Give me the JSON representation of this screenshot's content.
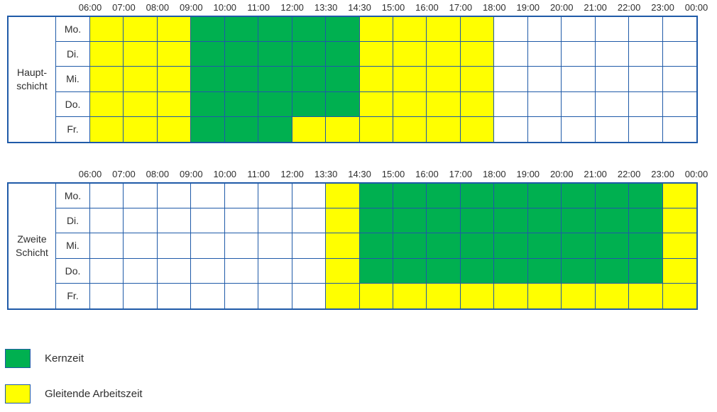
{
  "colors": {
    "core": "#00B050",
    "flex": "#FFFF00",
    "empty": "#FFFFFF",
    "grid": "#1F5AA8",
    "text": "#2e2e2e"
  },
  "time_labels": [
    "06:00",
    "07:00",
    "08:00",
    "09:00",
    "10:00",
    "11:00",
    "12:00",
    "13:30",
    "14:30",
    "15:00",
    "16:00",
    "17:00",
    "18:00",
    "19:00",
    "20:00",
    "21:00",
    "22:00",
    "23:00",
    "00:00"
  ],
  "tables": [
    {
      "id": "hauptschicht",
      "shift_label_lines": [
        "Haupt-",
        "schicht"
      ],
      "rows": [
        {
          "day": "Mo.",
          "cells": [
            "flex",
            "flex",
            "flex",
            "core",
            "core",
            "core",
            "core",
            "core",
            "flex",
            "flex",
            "flex",
            "flex",
            "empty",
            "empty",
            "empty",
            "empty",
            "empty",
            "empty"
          ]
        },
        {
          "day": "Di.",
          "cells": [
            "flex",
            "flex",
            "flex",
            "core",
            "core",
            "core",
            "core",
            "core",
            "flex",
            "flex",
            "flex",
            "flex",
            "empty",
            "empty",
            "empty",
            "empty",
            "empty",
            "empty"
          ]
        },
        {
          "day": "Mi.",
          "cells": [
            "flex",
            "flex",
            "flex",
            "core",
            "core",
            "core",
            "core",
            "core",
            "flex",
            "flex",
            "flex",
            "flex",
            "empty",
            "empty",
            "empty",
            "empty",
            "empty",
            "empty"
          ]
        },
        {
          "day": "Do.",
          "cells": [
            "flex",
            "flex",
            "flex",
            "core",
            "core",
            "core",
            "core",
            "core",
            "flex",
            "flex",
            "flex",
            "flex",
            "empty",
            "empty",
            "empty",
            "empty",
            "empty",
            "empty"
          ]
        },
        {
          "day": "Fr.",
          "cells": [
            "flex",
            "flex",
            "flex",
            "core",
            "core",
            "core",
            "flex",
            "flex",
            "flex",
            "flex",
            "flex",
            "flex",
            "empty",
            "empty",
            "empty",
            "empty",
            "empty",
            "empty"
          ]
        }
      ]
    },
    {
      "id": "zweite-schicht",
      "shift_label_lines": [
        "Zweite",
        "Schicht"
      ],
      "rows": [
        {
          "day": "Mo.",
          "cells": [
            "empty",
            "empty",
            "empty",
            "empty",
            "empty",
            "empty",
            "empty",
            "flex",
            "core",
            "core",
            "core",
            "core",
            "core",
            "core",
            "core",
            "core",
            "core",
            "flex"
          ]
        },
        {
          "day": "Di.",
          "cells": [
            "empty",
            "empty",
            "empty",
            "empty",
            "empty",
            "empty",
            "empty",
            "flex",
            "core",
            "core",
            "core",
            "core",
            "core",
            "core",
            "core",
            "core",
            "core",
            "flex"
          ]
        },
        {
          "day": "Mi.",
          "cells": [
            "empty",
            "empty",
            "empty",
            "empty",
            "empty",
            "empty",
            "empty",
            "flex",
            "core",
            "core",
            "core",
            "core",
            "core",
            "core",
            "core",
            "core",
            "core",
            "flex"
          ]
        },
        {
          "day": "Do.",
          "cells": [
            "empty",
            "empty",
            "empty",
            "empty",
            "empty",
            "empty",
            "empty",
            "flex",
            "core",
            "core",
            "core",
            "core",
            "core",
            "core",
            "core",
            "core",
            "core",
            "flex"
          ]
        },
        {
          "day": "Fr.",
          "cells": [
            "empty",
            "empty",
            "empty",
            "empty",
            "empty",
            "empty",
            "empty",
            "flex",
            "flex",
            "flex",
            "flex",
            "flex",
            "flex",
            "flex",
            "flex",
            "flex",
            "flex",
            "flex"
          ]
        }
      ]
    }
  ],
  "legend": [
    {
      "key": "core",
      "label": "Kernzeit",
      "color": "#00B050"
    },
    {
      "key": "flex",
      "label": "Gleitende Arbeitszeit",
      "color": "#FFFF00"
    }
  ]
}
